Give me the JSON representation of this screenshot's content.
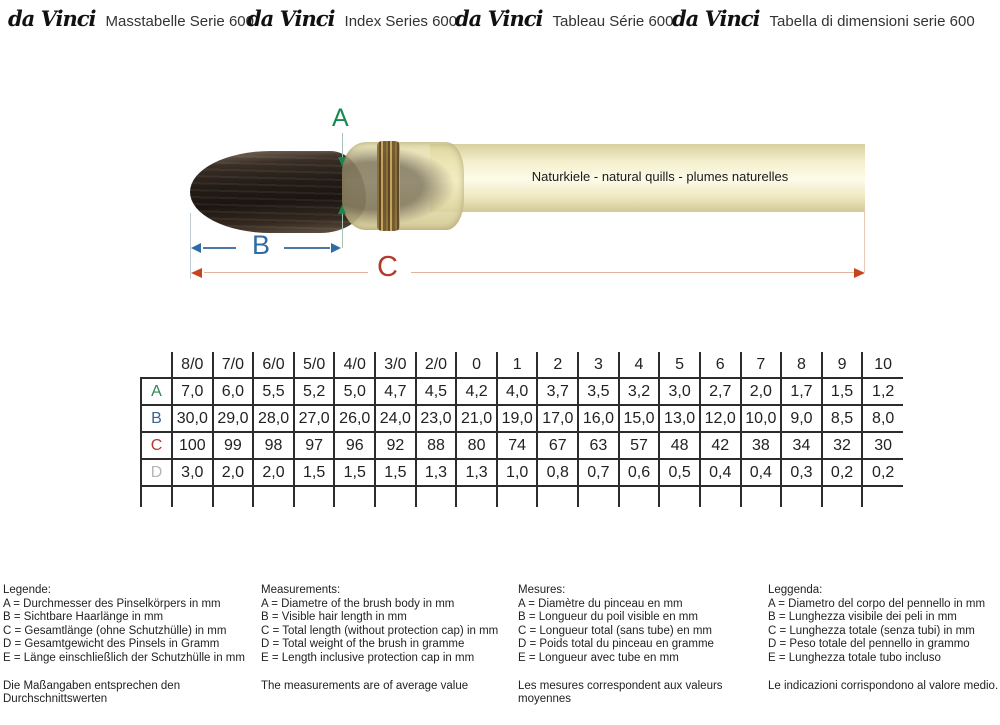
{
  "header": {
    "brand": "da Vinci",
    "entries": [
      {
        "label": "Masstabelle Serie 600"
      },
      {
        "label": "Index Series 600"
      },
      {
        "label": "Tableau Série 600"
      },
      {
        "label": "Tabella di dimensioni serie 600"
      }
    ]
  },
  "diagram": {
    "brush_text": "Naturkiele - natural quills - plumes naturelles",
    "dim_a": {
      "label": "A",
      "color": "#168a4e"
    },
    "dim_b": {
      "label": "B",
      "color": "#2e6da4"
    },
    "dim_c": {
      "label": "C",
      "color": "#b23b2b"
    }
  },
  "chart_data": {
    "type": "table",
    "columns": [
      "8/0",
      "7/0",
      "6/0",
      "5/0",
      "4/0",
      "3/0",
      "2/0",
      "0",
      "1",
      "2",
      "3",
      "4",
      "5",
      "6",
      "7",
      "8",
      "9",
      "10"
    ],
    "rows": [
      {
        "label": "A",
        "color": "#2d8653",
        "values": [
          "7,0",
          "6,0",
          "5,5",
          "5,2",
          "5,0",
          "4,7",
          "4,5",
          "4,2",
          "4,0",
          "3,7",
          "3,5",
          "3,2",
          "3,0",
          "2,7",
          "2,0",
          "1,7",
          "1,5",
          "1,2"
        ]
      },
      {
        "label": "B",
        "color": "#39648f",
        "values": [
          "30,0",
          "29,0",
          "28,0",
          "27,0",
          "26,0",
          "24,0",
          "23,0",
          "21,0",
          "19,0",
          "17,0",
          "16,0",
          "15,0",
          "13,0",
          "12,0",
          "10,0",
          "9,0",
          "8,5",
          "8,0"
        ]
      },
      {
        "label": "C",
        "color": "#b03a30",
        "values": [
          "100",
          "99",
          "98",
          "97",
          "96",
          "92",
          "88",
          "80",
          "74",
          "67",
          "63",
          "57",
          "48",
          "42",
          "38",
          "34",
          "32",
          "30"
        ]
      },
      {
        "label": "D",
        "color": "#b5b5b5",
        "values": [
          "3,0",
          "2,0",
          "2,0",
          "1,5",
          "1,5",
          "1,5",
          "1,3",
          "1,3",
          "1,0",
          "0,8",
          "0,7",
          "0,6",
          "0,5",
          "0,4",
          "0,4",
          "0,3",
          "0,2",
          "0,2"
        ]
      }
    ]
  },
  "legend": {
    "columns": [
      {
        "title": "Legende:",
        "lines": [
          "A = Durchmesser des Pinselkörpers in mm",
          "B = Sichtbare Haarlänge in mm",
          "C = Gesamtlänge (ohne Schutzhülle) in mm",
          "D = Gesamtgewicht des Pinsels in Gramm",
          "E = Länge einschließlich der Schutzhülle in mm"
        ],
        "note": "Die Maßangaben entsprechen den Durchschnittswerten"
      },
      {
        "title": "Measurements:",
        "lines": [
          "A = Diametre of the brush body in mm",
          "B = Visible hair length in mm",
          "C = Total length (without protection cap) in mm",
          "D = Total weight of the brush in gramme",
          "E = Length inclusive protection cap in mm"
        ],
        "note": "The measurements are of average value"
      },
      {
        "title": "Mesures:",
        "lines": [
          "A = Diamètre du pinceau en mm",
          "B = Longueur du poil visible en mm",
          "C = Longueur total (sans tube) en mm",
          "D = Poids total du pinceau en gramme",
          "E = Longueur avec tube en mm"
        ],
        "note": "Les mesures correspondent aux valeurs moyennes"
      },
      {
        "title": "Leggenda:",
        "lines": [
          "A = Diametro del corpo del pennello in mm",
          "B = Lunghezza visibile dei peli in mm",
          "C = Lunghezza totale (senza tubi) in mm",
          "D = Peso totale del pennello in grammo",
          "E = Lunghezza totale tubo incluso"
        ],
        "note": "Le indicazioni corrispondono al valore medio."
      }
    ]
  }
}
